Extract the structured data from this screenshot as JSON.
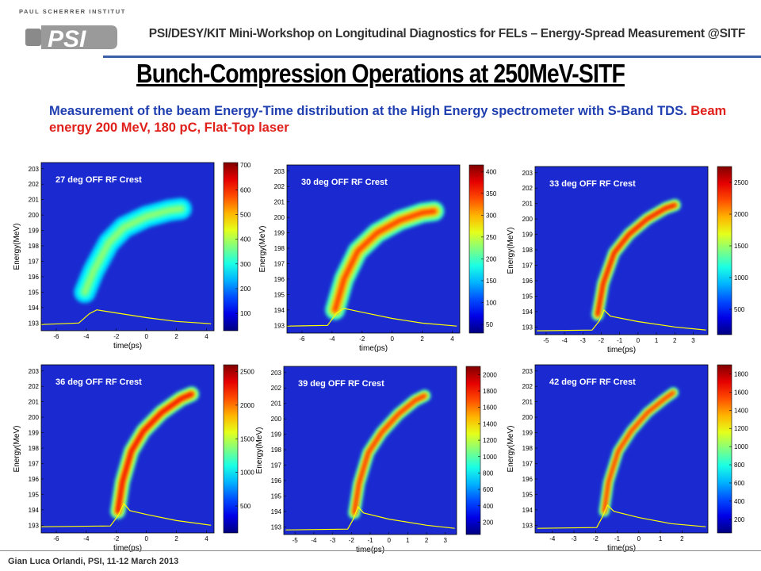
{
  "header": {
    "institute": "PAUL SCHERRER INSTITUT",
    "logo_text": "PSI",
    "workshop": "PSI/DESY/KIT  Mini-Workshop on Longitudinal Diagnostics for FELs – Energy-Spread Measurement @SITF"
  },
  "title": "Bunch-Compression Operations at 250MeV-SITF",
  "subtitle": {
    "blue": "Measurement of the beam Energy-Time distribution at the High Energy spectrometer with S-Band TDS.",
    "red": "Beam energy 200 MeV, 180 pC, Flat-Top laser"
  },
  "footer": "Gian Luca Orlandi, PSI, 11-12 March 2013",
  "colors": {
    "rule": "#3a5fa8",
    "subtitle_blue": "#1f3fb0",
    "subtitle_red": "#e0201b",
    "plot_bg": "#1a2ad0",
    "profile": "#ffff00"
  },
  "chart_data": [
    {
      "type": "heatmap",
      "caption": "27 deg OFF RF Crest",
      "xlabel": "time(ps)",
      "ylabel": "Energy(MeV)",
      "xticks": [
        -6,
        -4,
        -2,
        0,
        2,
        4
      ],
      "xlim": [
        -7,
        4.5
      ],
      "yticks": [
        193,
        194,
        195,
        196,
        197,
        198,
        199,
        200,
        201,
        202,
        203
      ],
      "ylim": [
        192.5,
        203.4
      ],
      "colorbar_ticks": [
        100,
        200,
        300,
        400,
        500,
        600,
        700
      ],
      "colorbar_lim": [
        30,
        710
      ],
      "trace": [
        [
          -4.1,
          195.0
        ],
        [
          -3.5,
          196.4
        ],
        [
          -2.5,
          198.2
        ],
        [
          -1.5,
          199.2
        ],
        [
          0,
          199.9
        ],
        [
          1.5,
          200.3
        ],
        [
          2.3,
          200.4
        ]
      ],
      "trace_width": 0.55,
      "trace_intensity": 0.42,
      "profile": [
        [
          -7,
          192.9
        ],
        [
          -4.5,
          193.0
        ],
        [
          -3.8,
          193.6
        ],
        [
          -3.3,
          193.85
        ],
        [
          -2,
          193.65
        ],
        [
          0,
          193.35
        ],
        [
          2,
          193.1
        ],
        [
          4.3,
          192.95
        ]
      ]
    },
    {
      "type": "heatmap",
      "caption": "30 deg OFF RF Crest",
      "xlabel": "time(ps)",
      "ylabel": "Energy(MeV)",
      "xticks": [
        -6,
        -4,
        -2,
        0,
        2,
        4
      ],
      "xlim": [
        -7,
        4.5
      ],
      "yticks": [
        193,
        194,
        195,
        196,
        197,
        198,
        199,
        200,
        201,
        202,
        203
      ],
      "ylim": [
        192.5,
        203.4
      ],
      "colorbar_ticks": [
        50,
        100,
        150,
        200,
        250,
        300,
        350,
        400
      ],
      "colorbar_lim": [
        30,
        415
      ],
      "trace": [
        [
          -3.8,
          194.0
        ],
        [
          -3.2,
          196.0
        ],
        [
          -2.3,
          197.8
        ],
        [
          -1.0,
          199.0
        ],
        [
          0.5,
          199.8
        ],
        [
          2.0,
          200.3
        ],
        [
          2.8,
          200.4
        ]
      ],
      "trace_width": 0.5,
      "trace_intensity": 0.85,
      "profile": [
        [
          -7,
          192.95
        ],
        [
          -4.3,
          193.0
        ],
        [
          -3.7,
          193.8
        ],
        [
          -3.2,
          194.1
        ],
        [
          -2,
          193.85
        ],
        [
          0,
          193.45
        ],
        [
          2,
          193.15
        ],
        [
          4.3,
          192.95
        ]
      ]
    },
    {
      "type": "heatmap",
      "caption": "33 deg OFF RF Crest",
      "xlabel": "time(ps)",
      "ylabel": "Energy(MeV)",
      "xticks": [
        -5,
        -4,
        -3,
        -2,
        -1,
        0,
        1,
        2,
        3
      ],
      "xlim": [
        -5.6,
        3.8
      ],
      "yticks": [
        193,
        194,
        195,
        196,
        197,
        198,
        199,
        200,
        201,
        202,
        203
      ],
      "ylim": [
        192.5,
        203.4
      ],
      "colorbar_ticks": [
        500,
        1000,
        1500,
        2000,
        2500
      ],
      "colorbar_lim": [
        100,
        2750
      ],
      "trace": [
        [
          -2.2,
          193.8
        ],
        [
          -1.9,
          195.8
        ],
        [
          -1.3,
          197.8
        ],
        [
          -0.5,
          199.0
        ],
        [
          0.5,
          200.0
        ],
        [
          1.5,
          200.7
        ],
        [
          2.0,
          200.9
        ]
      ],
      "trace_width": 0.3,
      "trace_intensity": 0.95,
      "profile": [
        [
          -5.5,
          192.75
        ],
        [
          -2.5,
          192.8
        ],
        [
          -2.1,
          193.4
        ],
        [
          -1.85,
          194.1
        ],
        [
          -1.5,
          193.7
        ],
        [
          0,
          193.35
        ],
        [
          2,
          193.0
        ],
        [
          3.7,
          192.8
        ]
      ]
    },
    {
      "type": "heatmap",
      "caption": "36 deg OFF RF Crest",
      "xlabel": "time(ps)",
      "ylabel": "Energy(MeV)",
      "xticks": [
        -6,
        -4,
        -2,
        0,
        2,
        4
      ],
      "xlim": [
        -7,
        4.5
      ],
      "yticks": [
        193,
        194,
        195,
        196,
        197,
        198,
        199,
        200,
        201,
        202,
        203
      ],
      "ylim": [
        192.5,
        203.4
      ],
      "colorbar_ticks": [
        500,
        1000,
        1500,
        2000,
        2500
      ],
      "colorbar_lim": [
        100,
        2600
      ],
      "trace": [
        [
          -1.9,
          193.9
        ],
        [
          -1.6,
          195.8
        ],
        [
          -1.0,
          197.8
        ],
        [
          -0.2,
          199.1
        ],
        [
          1.0,
          200.3
        ],
        [
          2.3,
          201.2
        ],
        [
          3.0,
          201.5
        ]
      ],
      "trace_width": 0.38,
      "trace_intensity": 0.95,
      "profile": [
        [
          -7,
          192.9
        ],
        [
          -2.4,
          192.95
        ],
        [
          -1.9,
          193.6
        ],
        [
          -1.5,
          194.4
        ],
        [
          -1.1,
          193.95
        ],
        [
          0,
          193.7
        ],
        [
          2,
          193.3
        ],
        [
          4.3,
          193.0
        ]
      ]
    },
    {
      "type": "heatmap",
      "caption": "39 deg OFF RF Crest",
      "xlabel": "time(ps)",
      "ylabel": "Energy(MeV)",
      "xticks": [
        -5,
        -4,
        -3,
        -2,
        -1,
        0,
        1,
        2,
        3
      ],
      "xlim": [
        -5.6,
        3.6
      ],
      "yticks": [
        193,
        194,
        195,
        196,
        197,
        198,
        199,
        200,
        201,
        202,
        203
      ],
      "ylim": [
        192.5,
        203.4
      ],
      "colorbar_ticks": [
        200,
        400,
        600,
        800,
        1000,
        1200,
        1400,
        1600,
        1800,
        2000
      ],
      "colorbar_lim": [
        50,
        2100
      ],
      "trace": [
        [
          -1.85,
          193.9
        ],
        [
          -1.6,
          195.8
        ],
        [
          -1.1,
          197.8
        ],
        [
          -0.4,
          199.1
        ],
        [
          0.5,
          200.3
        ],
        [
          1.4,
          201.2
        ],
        [
          1.9,
          201.5
        ]
      ],
      "trace_width": 0.3,
      "trace_intensity": 0.9,
      "profile": [
        [
          -5.5,
          192.8
        ],
        [
          -2.2,
          192.85
        ],
        [
          -1.9,
          193.5
        ],
        [
          -1.65,
          194.3
        ],
        [
          -1.35,
          193.9
        ],
        [
          0,
          193.5
        ],
        [
          2,
          193.1
        ],
        [
          3.5,
          192.9
        ]
      ]
    },
    {
      "type": "heatmap",
      "caption": "42 deg OFF RF Crest",
      "xlabel": "time(ps)",
      "ylabel": "Energy(MeV)",
      "xticks": [
        -4,
        -3,
        -2,
        -1,
        0,
        1,
        2
      ],
      "xlim": [
        -4.8,
        3.2
      ],
      "yticks": [
        193,
        194,
        195,
        196,
        197,
        198,
        199,
        200,
        201,
        202,
        203
      ],
      "ylim": [
        192.5,
        203.4
      ],
      "colorbar_ticks": [
        200,
        400,
        600,
        800,
        1000,
        1200,
        1400,
        1600,
        1800
      ],
      "colorbar_lim": [
        50,
        1900
      ],
      "trace": [
        [
          -1.6,
          193.9
        ],
        [
          -1.4,
          195.8
        ],
        [
          -0.95,
          197.8
        ],
        [
          -0.35,
          199.1
        ],
        [
          0.4,
          200.3
        ],
        [
          1.2,
          201.2
        ],
        [
          1.6,
          201.6
        ]
      ],
      "trace_width": 0.26,
      "trace_intensity": 0.9,
      "profile": [
        [
          -4.7,
          192.8
        ],
        [
          -1.95,
          192.85
        ],
        [
          -1.7,
          193.5
        ],
        [
          -1.45,
          194.3
        ],
        [
          -1.15,
          193.9
        ],
        [
          0,
          193.5
        ],
        [
          1.5,
          193.1
        ],
        [
          3.1,
          192.9
        ]
      ]
    }
  ]
}
